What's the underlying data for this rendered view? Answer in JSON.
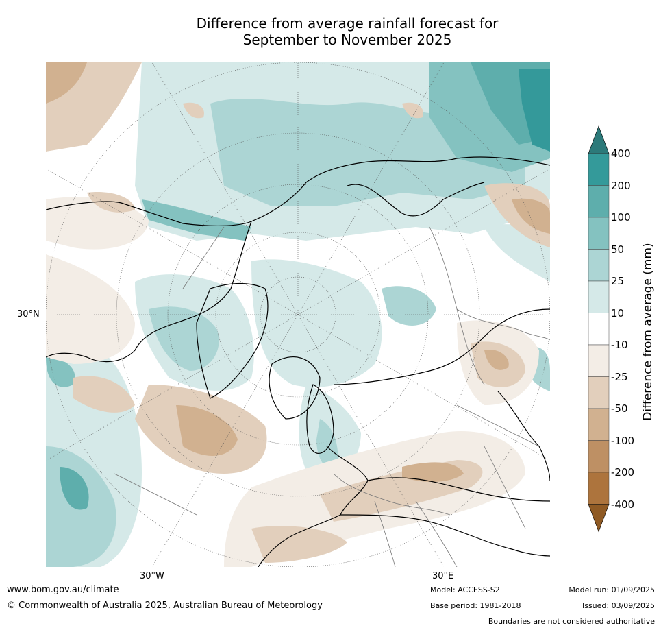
{
  "title": {
    "line1": "Difference from average rainfall forecast for",
    "line2": "September to November 2025"
  },
  "map": {
    "lat_label": "30°N",
    "lon_labels": {
      "west": "30°W",
      "east": "30°E"
    },
    "colors": {
      "ocean_wet_1": "#d5e9e8",
      "ocean_wet_2": "#acd5d4",
      "ocean_wet_3": "#84c2c0",
      "ocean_wet_4": "#5eaeac",
      "ocean_wet_5": "#34999a",
      "dry_1": "#f3ede6",
      "dry_2": "#e2cfbc",
      "dry_3": "#d1b190",
      "dry_4": "#c09369"
    }
  },
  "colorbar": {
    "label": "Difference from average (mm)",
    "ticks": [
      "400",
      "200",
      "100",
      "50",
      "25",
      "10",
      "-10",
      "-25",
      "-50",
      "-100",
      "-200",
      "-400"
    ],
    "colors": [
      "#2c7a7a",
      "#349a9a",
      "#5eaeac",
      "#84c2c0",
      "#acd5d4",
      "#d5e9e8",
      "#ffffff",
      "#f3ede6",
      "#e2cfbc",
      "#d1b190",
      "#be9064",
      "#ad743d",
      "#8f5a24"
    ]
  },
  "footer": {
    "website": "www.bom.gov.au/climate",
    "copyright": "© Commonwealth of Australia 2025, Australian Bureau of Meteorology",
    "model": "Model: ACCESS-S2",
    "base_period": "Base period: 1981-2018",
    "model_run": "Model run: 01/09/2025",
    "issued": "Issued: 03/09/2025",
    "disclaimer": "Boundaries are not considered authoritative"
  }
}
